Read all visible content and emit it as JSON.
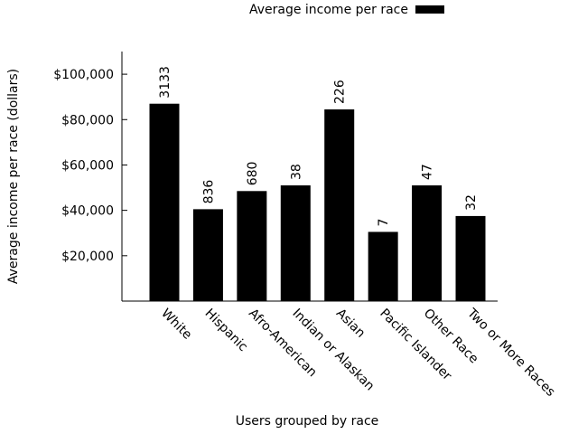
{
  "chart_data": {
    "type": "bar",
    "xlabel": "Users grouped by race",
    "ylabel": "Average income per race (dollars)",
    "legend": {
      "label": "Average income per race",
      "placement": "top-right"
    },
    "ylim": [
      0,
      110000
    ],
    "yticks": [
      20000,
      40000,
      60000,
      80000,
      100000
    ],
    "ytick_labels": [
      "$20,000",
      "$40,000",
      "$60,000",
      "$80,000",
      "$100,000"
    ],
    "categories": [
      "White",
      "Hispanic",
      "Afro-American",
      "Indian or Alaskan",
      "Asian",
      "Pacific Islander",
      "Other Race",
      "Two or More Races"
    ],
    "series": [
      {
        "name": "Average income per race",
        "values": [
          87000,
          40500,
          48500,
          51000,
          84500,
          30500,
          51000,
          37500
        ],
        "labels": [
          "3133",
          "836",
          "680",
          "38",
          "226",
          "7",
          "47",
          "32"
        ],
        "color": "#000000"
      }
    ]
  }
}
